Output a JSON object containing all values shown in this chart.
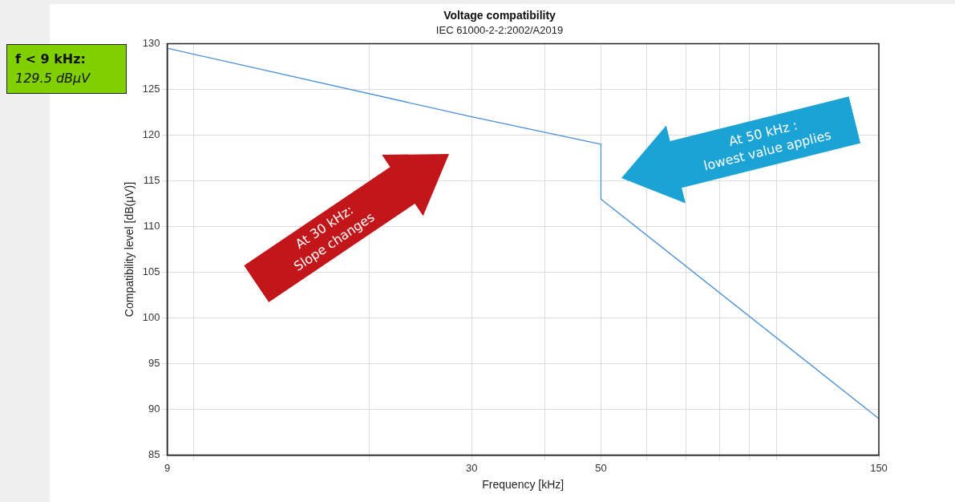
{
  "chart_data": {
    "type": "line",
    "title": "Voltage compatibility",
    "subtitle": "IEC 61000-2-2:2002/A2019",
    "xlabel": "Frequency [kHz]",
    "ylabel": "Compatibility level [dB(μV)]",
    "log": "x",
    "xlim": [
      9,
      150
    ],
    "ylim": [
      85,
      130
    ],
    "xticks": [
      9,
      {
        "value": 10,
        "label": null
      },
      {
        "value": 20,
        "label": null
      },
      30,
      {
        "value": 40,
        "label": null
      },
      50,
      {
        "value": 60,
        "label": null
      },
      {
        "value": 70,
        "label": null
      },
      {
        "value": 80,
        "label": null
      },
      {
        "value": 90,
        "label": null
      },
      {
        "value": 100,
        "label": null
      },
      150
    ],
    "yticks": [
      85,
      90,
      95,
      100,
      105,
      110,
      115,
      120,
      125,
      130
    ],
    "grid": true,
    "legend": false,
    "marker": "none",
    "line_style": "solid",
    "series": [
      {
        "color": "#4a8fd8",
        "x": [
          9,
          30,
          50,
          50,
          150
        ],
        "values": [
          129.5,
          122,
          119,
          113,
          89
        ]
      }
    ],
    "annotations": [
      "f < 9 kHz:",
      "129.5 dBμV",
      "At 30 kHz:\nSlope changes",
      "At 50 kHz :\nlowest value applies"
    ]
  }
}
